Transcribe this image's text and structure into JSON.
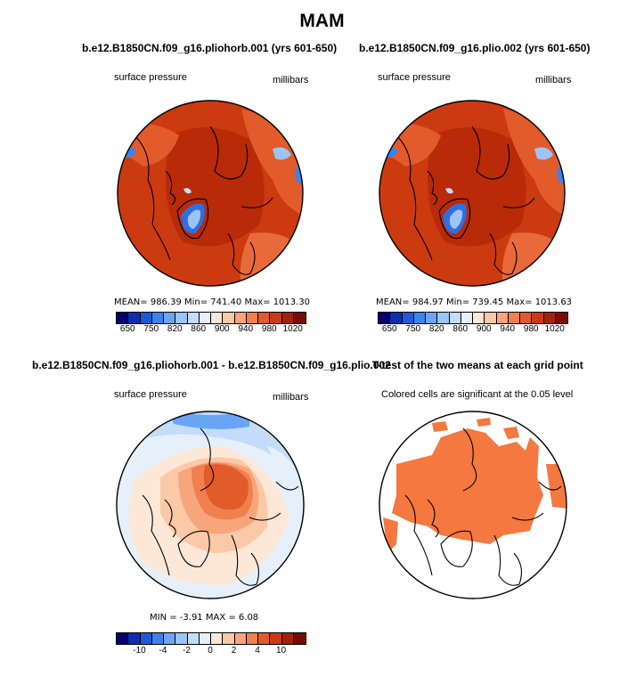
{
  "title": "MAM",
  "palette": [
    "#08006e",
    "#0b2fb0",
    "#1e5ad8",
    "#3c82ee",
    "#6aa5f5",
    "#9cc4f7",
    "#c4dcf9",
    "#e6f0fb",
    "#fde8d8",
    "#fbc8a8",
    "#f8a57c",
    "#f0804e",
    "#e25b2a",
    "#cc3a10",
    "#a52008",
    "#7a0a04"
  ],
  "plots": {
    "p1": {
      "title": "b.e12.B1850CN.f09_g16.pliohorb.001 (yrs 601-650)",
      "variable": "surface pressure",
      "units": "millibars",
      "stats": "MEAN= 986.39   Min= 741.40   Max= 1013.30",
      "ticks": [
        "650",
        "750",
        "820",
        "860",
        "900",
        "940",
        "980",
        "1020"
      ]
    },
    "p2": {
      "title": "b.e12.B1850CN.f09_g16.plio.002 (yrs 601-650)",
      "variable": "surface pressure",
      "units": "millibars",
      "stats": "MEAN= 984.97   Min= 739.45   Max= 1013.63",
      "ticks": [
        "650",
        "750",
        "820",
        "860",
        "900",
        "940",
        "980",
        "1020"
      ]
    },
    "p3": {
      "title": "b.e12.B1850CN.f09_g16.pliohorb.001 - b.e12.B1850CN.f09_g16.plio.002",
      "variable": "surface pressure",
      "units": "millibars",
      "stats": "MIN =   -3.91  MAX =    6.08",
      "ticks": [
        "-10",
        "-4",
        "-2",
        "0",
        "2",
        "4",
        "10"
      ]
    },
    "p4": {
      "title": "T-test of the two means at each grid point",
      "subtitle": "Colored cells are significant at the 0.05 level"
    }
  },
  "colors": {
    "sig_fill": "#f4783f",
    "coast": "#000000",
    "ice_blue": "#2f6fe0"
  }
}
